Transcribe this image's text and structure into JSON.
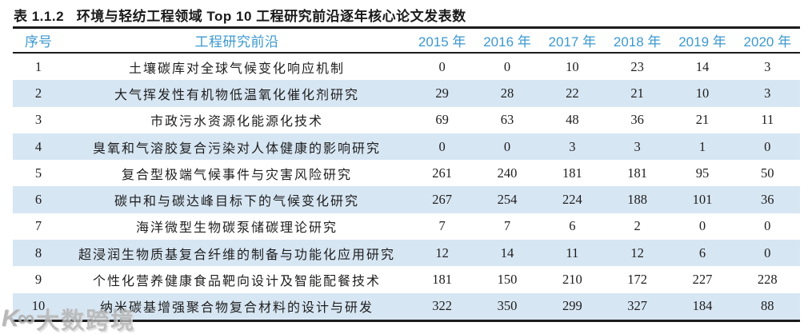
{
  "title": "表 1.1.2   环境与轻纺工程领域 Top 10 工程研究前沿逐年核心论文发表数",
  "table": {
    "headers": [
      "序号",
      "工程研究前沿",
      "2015 年",
      "2016 年",
      "2017 年",
      "2018 年",
      "2019 年",
      "2020 年"
    ],
    "rows": [
      {
        "rank": "1",
        "frontier": "土壤碳库对全球气候变化响应机制",
        "values": [
          "0",
          "0",
          "10",
          "23",
          "14",
          "3"
        ]
      },
      {
        "rank": "2",
        "frontier": "大气挥发性有机物低温氧化催化剂研究",
        "values": [
          "29",
          "28",
          "22",
          "21",
          "10",
          "3"
        ]
      },
      {
        "rank": "3",
        "frontier": "市政污水资源化能源化技术",
        "values": [
          "69",
          "63",
          "48",
          "36",
          "21",
          "11"
        ]
      },
      {
        "rank": "4",
        "frontier": "臭氧和气溶胶复合污染对人体健康的影响研究",
        "values": [
          "0",
          "0",
          "3",
          "3",
          "1",
          "0"
        ]
      },
      {
        "rank": "5",
        "frontier": "复合型极端气候事件与灾害风险研究",
        "values": [
          "261",
          "240",
          "181",
          "181",
          "95",
          "50"
        ]
      },
      {
        "rank": "6",
        "frontier": "碳中和与碳达峰目标下的气候变化研究",
        "values": [
          "267",
          "254",
          "224",
          "188",
          "101",
          "36"
        ]
      },
      {
        "rank": "7",
        "frontier": "海洋微型生物碳泵储碳理论研究",
        "values": [
          "7",
          "7",
          "6",
          "2",
          "0",
          "0"
        ]
      },
      {
        "rank": "8",
        "frontier": "超浸润生物质基复合纤维的制备与功能化应用研究",
        "values": [
          "12",
          "14",
          "11",
          "12",
          "6",
          "0"
        ]
      },
      {
        "rank": "9",
        "frontier": "个性化营养健康食品靶向设计及智能配餐技术",
        "values": [
          "181",
          "150",
          "210",
          "172",
          "227",
          "228"
        ]
      },
      {
        "rank": "10",
        "frontier": "纳米碳基增强聚合物复合材料的设计与研发",
        "values": [
          "322",
          "350",
          "299",
          "327",
          "184",
          "88"
        ]
      }
    ]
  },
  "watermark": {
    "logo_glyph": "K∞",
    "text": "大数跨境"
  },
  "colors": {
    "header_text": "#3d99cf",
    "alt_row_bg": "#d7e6f3",
    "rule": "#1c1c1c",
    "body_text": "#1e1e1e",
    "watermark": "#b3b3b3"
  }
}
